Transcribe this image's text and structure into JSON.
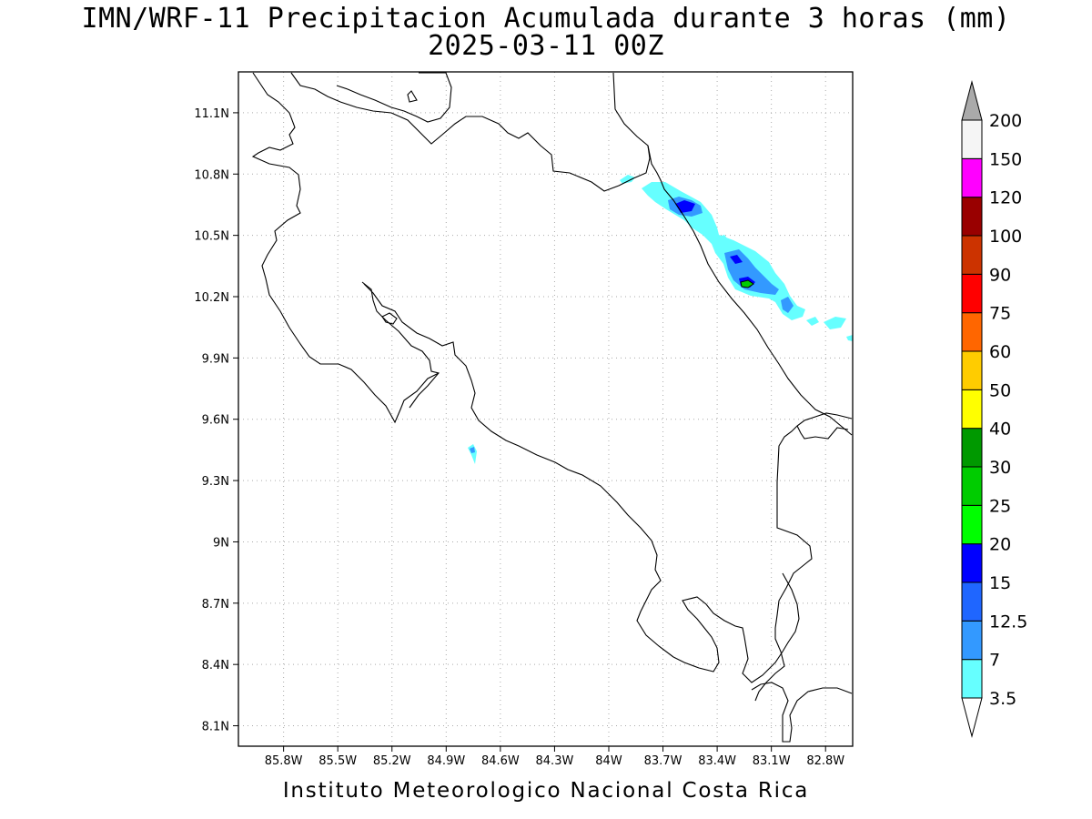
{
  "title_line1": "IMN/WRF-11 Precipitacion Acumulada durante 3 horas (mm)",
  "title_line2": "2025-03-11 00Z",
  "footer": "Instituto Meteorologico Nacional Costa Rica",
  "map": {
    "lon_range": [
      -86.05,
      -82.65
    ],
    "lat_range": [
      8.0,
      11.3
    ],
    "lon_ticks": [
      "85.8W",
      "85.5W",
      "85.2W",
      "84.9W",
      "84.6W",
      "84.3W",
      "84W",
      "83.7W",
      "83.4W",
      "83.1W",
      "82.8W"
    ],
    "lat_ticks": [
      "11.1N",
      "10.8N",
      "10.5N",
      "10.2N",
      "9.9N",
      "9.6N",
      "9.3N",
      "9N",
      "8.7N",
      "8.4N",
      "8.1N"
    ],
    "grid": "dotted"
  },
  "colorbar": {
    "levels": [
      "3.5",
      "7",
      "12.5",
      "15",
      "20",
      "25",
      "30",
      "40",
      "50",
      "60",
      "75",
      "90",
      "100",
      "120",
      "150",
      "200"
    ],
    "colors": [
      "#66ffff",
      "#3399ff",
      "#1f66ff",
      "#0000ff",
      "#00ff00",
      "#00cc00",
      "#009900",
      "#ffff00",
      "#ffcc00",
      "#ff6600",
      "#ff0000",
      "#cc3300",
      "#990000",
      "#ff00ff",
      "#9933cc",
      "#f5f5f5",
      "#aaaaaa"
    ]
  }
}
